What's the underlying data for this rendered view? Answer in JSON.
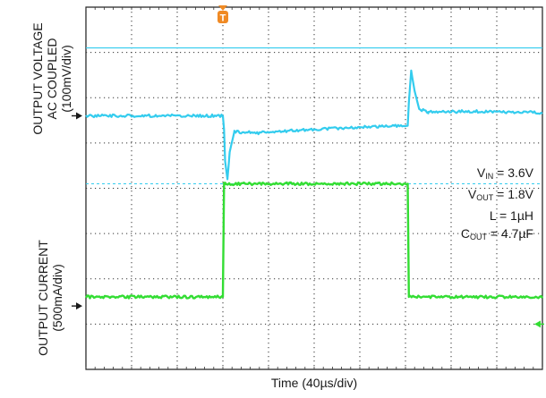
{
  "chart_data": {
    "type": "line",
    "x_axis": {
      "label": "Time (40µs/div)",
      "divisions": 10,
      "us_per_div": 40
    },
    "grid": true,
    "channels": [
      {
        "name": "OUTPUT VOLTAGE",
        "label_lines": [
          "OUTPUT VOLTAGE",
          "AC COUPLED",
          "(100mV/div)"
        ],
        "color": "#33ccee",
        "ac_coupled": true,
        "mV_per_div": 100,
        "points_mV": [
          [
            0,
            0
          ],
          [
            120,
            0
          ],
          [
            121,
            -30
          ],
          [
            122,
            -100
          ],
          [
            124,
            -140
          ],
          [
            126,
            -80
          ],
          [
            130,
            -35
          ],
          [
            150,
            -38
          ],
          [
            200,
            -30
          ],
          [
            270,
            -22
          ],
          [
            282,
            -22
          ],
          [
            283,
            30
          ],
          [
            285,
            100
          ],
          [
            288,
            55
          ],
          [
            292,
            15
          ],
          [
            300,
            8
          ],
          [
            340,
            10
          ],
          [
            400,
            7
          ]
        ]
      },
      {
        "name": "OUTPUT CURRENT",
        "label_lines": [
          "OUTPUT CURRENT",
          "(500mA/div)"
        ],
        "color": "#33dd33",
        "mA_per_div": 500,
        "points_mA": [
          [
            0,
            100
          ],
          [
            120,
            100
          ],
          [
            121,
            1350
          ],
          [
            122,
            1350
          ],
          [
            282,
            1350
          ],
          [
            283,
            100
          ],
          [
            400,
            100
          ]
        ]
      }
    ],
    "trigger_marker": "T",
    "trigger_time_us": 120,
    "parameters": [
      {
        "main": "V",
        "sub": "IN",
        "rest": " = 3.6V"
      },
      {
        "main": "V",
        "sub": "OUT",
        "rest": " = 1.8V"
      },
      {
        "main": "L = 1µH",
        "sub": "",
        "rest": ""
      },
      {
        "main": "C",
        "sub": "OUT",
        "rest": " = 4.7µF"
      }
    ]
  }
}
